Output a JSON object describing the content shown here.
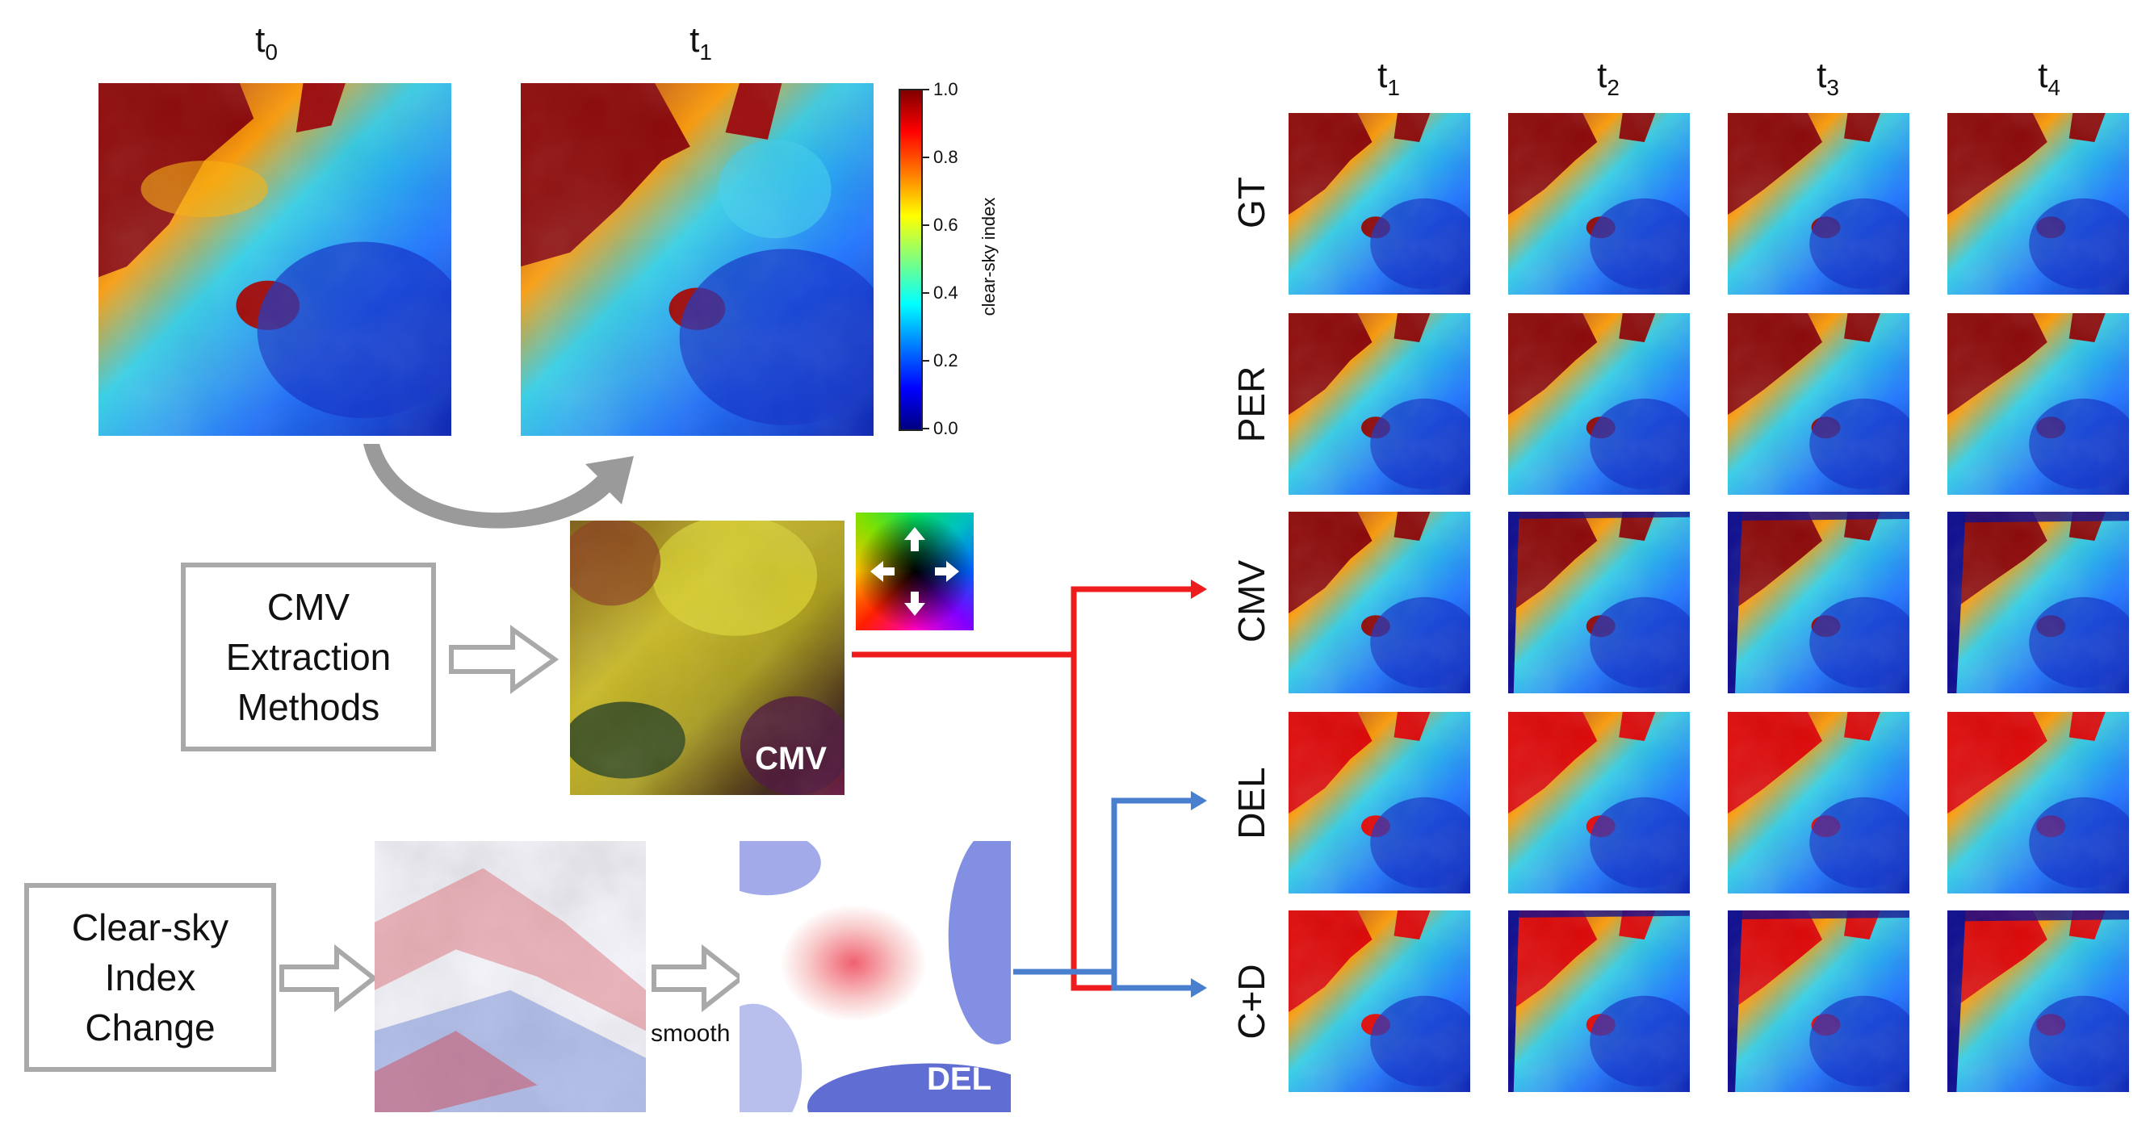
{
  "top_maps": [
    {
      "label_base": "t",
      "label_sub": "0"
    },
    {
      "label_base": "t",
      "label_sub": "1"
    }
  ],
  "colorbar": {
    "title": "clear-sky  index",
    "ticks": [
      "1.0",
      "0.8",
      "0.6",
      "0.4",
      "0.2",
      "0.0"
    ]
  },
  "grid": {
    "columns": [
      {
        "base": "t",
        "sub": "1"
      },
      {
        "base": "t",
        "sub": "2"
      },
      {
        "base": "t",
        "sub": "3"
      },
      {
        "base": "t",
        "sub": "4"
      }
    ],
    "rows": [
      "GT",
      "PER",
      "CMV",
      "DEL",
      "C+D"
    ]
  },
  "boxes": {
    "cmv_method": [
      "CMV",
      "Extraction",
      "Methods"
    ],
    "clear_sky_change": [
      "Clear-sky",
      "Index",
      "Change"
    ]
  },
  "panels": {
    "cmv_tag": "CMV",
    "del_tag": "DEL",
    "smooth_label": "smooth"
  },
  "colors": {
    "cmv_arrow": "#ee1c1c",
    "del_arrow": "#4a7fd0",
    "hollow_arrow": "#a9a9a9",
    "box_border": "#a9a9a9"
  }
}
